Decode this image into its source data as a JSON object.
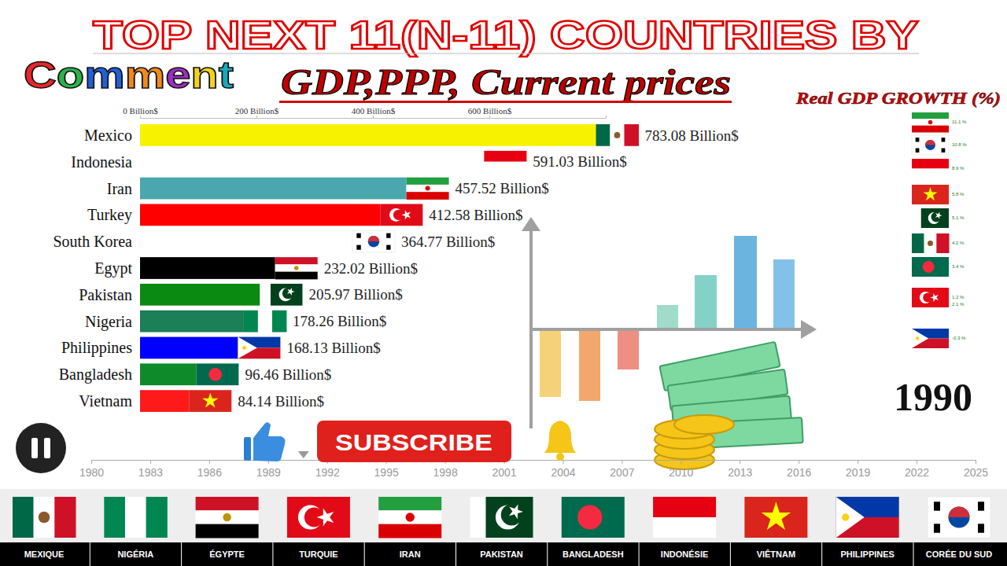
{
  "chart_data": [
    {
      "type": "bar",
      "title": "TOP NEXT 11(N-11) COUNTRIES BY",
      "subtitle": "GDP,PPP, Current prices",
      "orientation": "horizontal",
      "categories": [
        "Mexico",
        "Indonesia",
        "Iran",
        "Turkey",
        "South Korea",
        "Egypt",
        "Pakistan",
        "Nigeria",
        "Philippines",
        "Bangladesh",
        "Vietnam"
      ],
      "values": [
        783.08,
        591.03,
        457.52,
        412.58,
        364.77,
        232.02,
        205.97,
        178.26,
        168.13,
        96.46,
        84.14
      ],
      "value_labels": [
        "783.08 Billion$",
        "591.03 Billion$",
        "457.52 Billion$",
        "412.58 Billion$",
        "364.77 Billion$",
        "232.02 Billion$",
        "205.97 Billion$",
        "178.26 Billion$",
        "168.13 Billion$",
        "96.46 Billion$",
        "84.14 Billion$"
      ],
      "data_labels": true,
      "colors": [
        "#f7f200",
        "#ffffff",
        "#4aa7ad",
        "#ff0000",
        "#ffffff",
        "#000000",
        "#0b8a12",
        "#1b7f57",
        "#0000ff",
        "#0f8a2a",
        "#ff1a1a"
      ],
      "xlim": [
        0,
        800
      ],
      "xticks": [
        {
          "value": 0,
          "label": "0 Billion$"
        },
        {
          "value": 200,
          "label": "200 Billion$"
        },
        {
          "value": 400,
          "label": "400 Billion$"
        },
        {
          "value": 600,
          "label": "600 Billion$"
        }
      ],
      "annotations": [
        "1990"
      ]
    },
    {
      "type": "bar",
      "title": "Real GDP GROWTH (%)",
      "orientation": "horizontal",
      "categories": [
        null,
        null,
        null,
        null,
        null,
        null,
        null,
        null,
        null,
        null
      ],
      "values": [
        11.1,
        10.8,
        8.9,
        5.8,
        5.1,
        4.2,
        3.4,
        1.2,
        2.1,
        -0.3
      ],
      "value_labels": [
        "11.1 %",
        "10.8 %",
        "8.9 %",
        "5.8 %",
        "5.1 %",
        "4.2 %",
        "3.4 %",
        "1.2 %",
        "2.1 %",
        "-0.3 %"
      ],
      "data_labels": true,
      "tick_labels": false
    },
    {
      "type": "timeline",
      "xlim": [
        1980,
        2025
      ],
      "xticks": [
        1980,
        1983,
        1986,
        1989,
        1992,
        1995,
        1998,
        2001,
        2004,
        2007,
        2010,
        2013,
        2016,
        2019,
        2022,
        2025
      ],
      "x": [
        1990.8
      ]
    }
  ],
  "decor": {
    "comment": "Comment",
    "button": "SUBSCRIBE",
    "flag_strip": [
      "MEXIQUE",
      "NIGÉRIA",
      "ÉGYPTE",
      "TURQUIE",
      "IRAN",
      "PAKISTAN",
      "BANGLADESH",
      "INDONÉSIE",
      "VIÊTNAM",
      "PHILIPPINES",
      "CORÉE DU SUD"
    ]
  }
}
